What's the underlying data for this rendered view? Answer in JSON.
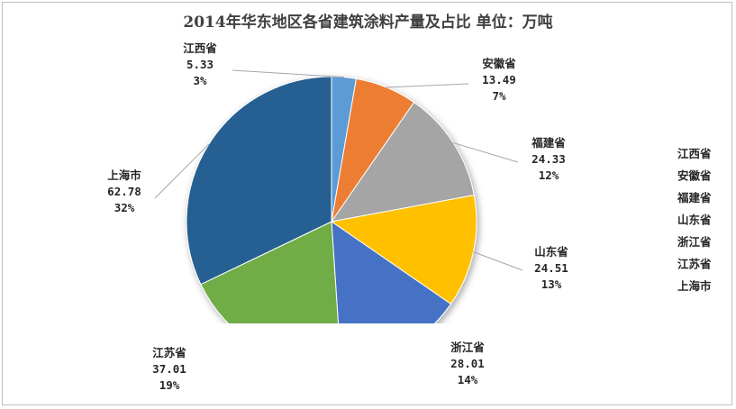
{
  "chart_data": {
    "type": "pie",
    "title": "2014年华东地区各省建筑涂料产量及占比   单位：万吨",
    "unit": "万吨",
    "slices": [
      {
        "name": "江西省",
        "value": 5.33,
        "percent": "3%",
        "color": "#5b9bd5"
      },
      {
        "name": "安徽省",
        "value": 13.49,
        "percent": "7%",
        "color": "#ed7d31"
      },
      {
        "name": "福建省",
        "value": 24.33,
        "percent": "12%",
        "color": "#a5a5a5"
      },
      {
        "name": "山东省",
        "value": 24.51,
        "percent": "13%",
        "color": "#ffc000"
      },
      {
        "name": "浙江省",
        "value": 28.01,
        "percent": "14%",
        "color": "#4472c4"
      },
      {
        "name": "江苏省",
        "value": 37.01,
        "percent": "19%",
        "color": "#70ad47"
      },
      {
        "name": "上海市",
        "value": 62.78,
        "percent": "32%",
        "color": "#255e91"
      }
    ],
    "legend_position": "right",
    "legend_colors_shown": false
  }
}
